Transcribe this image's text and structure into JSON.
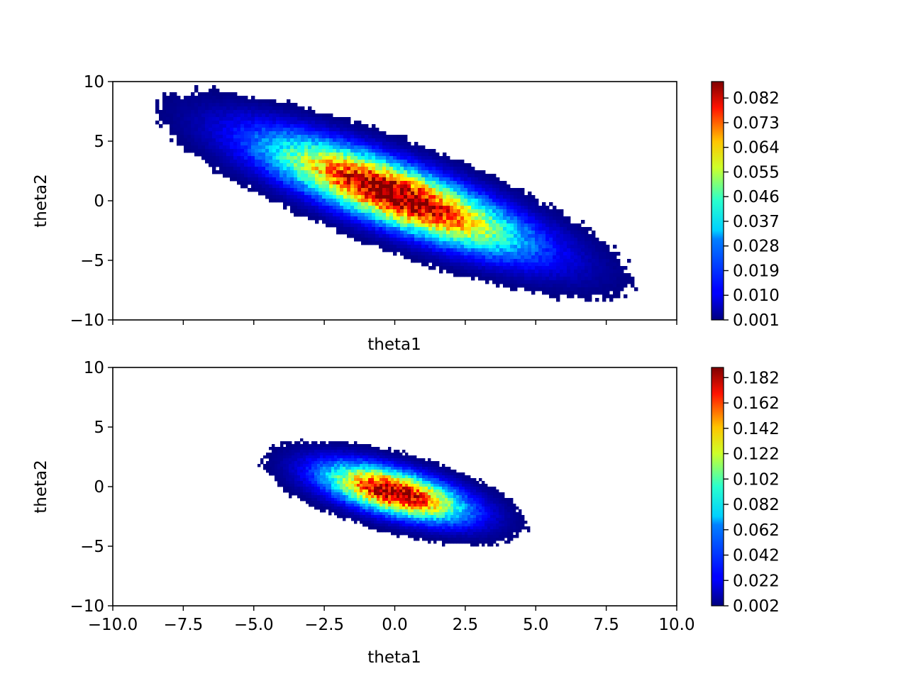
{
  "chart_data": [
    {
      "type": "contour",
      "title": "",
      "xlabel": "theta1",
      "ylabel": "theta2",
      "xlim": [
        -10,
        10
      ],
      "ylim": [
        -10,
        10
      ],
      "xticks": [
        -10,
        -7.5,
        -5,
        -2.5,
        0,
        2.5,
        5,
        7.5,
        10
      ],
      "xtick_labels_shown": false,
      "yticks": [
        -10,
        -5,
        0,
        5,
        10
      ],
      "ytick_labels": [
        "−10",
        "−5",
        "0",
        "5",
        "10"
      ],
      "grid": false,
      "colormap": "jet",
      "distribution": {
        "mean": [
          0.0,
          0.5
        ],
        "std": [
          2.9,
          3.0
        ],
        "correlation": -0.82,
        "peak_density": 0.09
      },
      "colorbar": {
        "min": 0.001,
        "max": 0.088,
        "ticks": [
          0.001,
          0.01,
          0.019,
          0.028,
          0.037,
          0.046,
          0.055,
          0.064,
          0.073,
          0.082
        ],
        "tick_labels": [
          "0.001",
          "0.010",
          "0.019",
          "0.028",
          "0.037",
          "0.046",
          "0.055",
          "0.064",
          "0.073",
          "0.082"
        ]
      }
    },
    {
      "type": "contour",
      "title": "",
      "xlabel": "theta1",
      "ylabel": "theta2",
      "xlim": [
        -10,
        10
      ],
      "ylim": [
        -10,
        10
      ],
      "xticks": [
        -10,
        -7.5,
        -5,
        -2.5,
        0,
        2.5,
        5,
        7.5,
        10
      ],
      "xtick_labels": [
        "−10.0",
        "−7.5",
        "−5.0",
        "−2.5",
        "0.0",
        "2.5",
        "5.0",
        "7.5",
        "10.0"
      ],
      "yticks": [
        -10,
        -5,
        0,
        5,
        10
      ],
      "ytick_labels": [
        "−10",
        "−5",
        "0",
        "5",
        "10"
      ],
      "grid": false,
      "colormap": "jet",
      "distribution": {
        "mean": [
          0.0,
          -0.5
        ],
        "std": [
          1.6,
          1.5
        ],
        "correlation": -0.6,
        "peak_density": 0.19
      },
      "colorbar": {
        "min": 0.002,
        "max": 0.19,
        "ticks": [
          0.002,
          0.022,
          0.042,
          0.062,
          0.082,
          0.102,
          0.122,
          0.142,
          0.162,
          0.182
        ],
        "tick_labels": [
          "0.002",
          "0.022",
          "0.042",
          "0.062",
          "0.082",
          "0.102",
          "0.122",
          "0.142",
          "0.162",
          "0.182"
        ]
      }
    }
  ]
}
